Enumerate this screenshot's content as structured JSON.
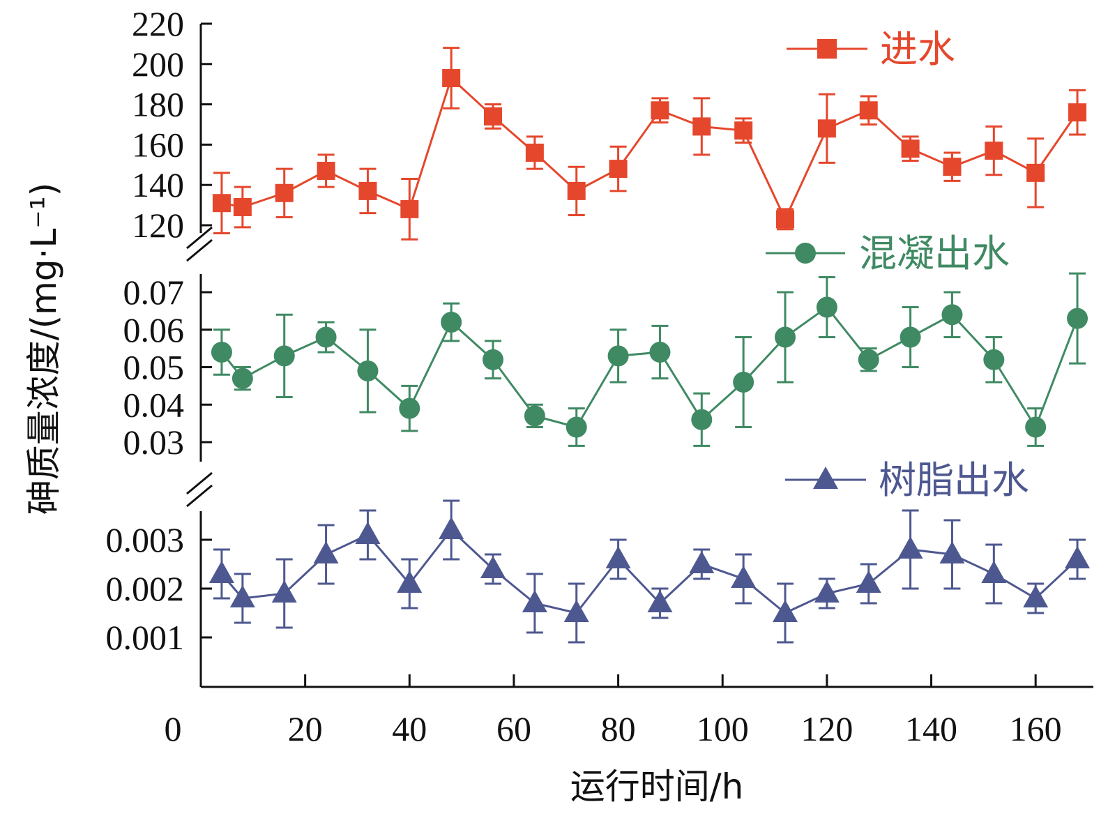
{
  "chart_data": {
    "type": "line",
    "xlabel": "运行时间/h",
    "ylabel": "砷质量浓度/(mg·L⁻¹)",
    "x_ticks": [
      "0",
      "20",
      "40",
      "60",
      "80",
      "100",
      "120",
      "140",
      "160"
    ],
    "xlim": [
      0,
      170
    ],
    "x": [
      4,
      8,
      16,
      24,
      32,
      40,
      48,
      56,
      64,
      72,
      80,
      88,
      96,
      104,
      112,
      120,
      128,
      136,
      144,
      152,
      160,
      168
    ],
    "panels": [
      {
        "y_ticks": [
          "120",
          "140",
          "160",
          "180",
          "200",
          "220"
        ],
        "ylim": [
          115,
          220
        ],
        "series": [
          {
            "name": "进水",
            "color": "#e5472c",
            "marker": "square",
            "values": [
              131,
              129,
              136,
              147,
              137,
              128,
              193,
              174,
              156,
              137,
              148,
              177,
              169,
              167,
              123,
              168,
              177,
              158,
              149,
              157,
              146,
              176
            ],
            "errors": [
              15,
              10,
              12,
              8,
              11,
              15,
              15,
              6,
              8,
              12,
              11,
              6,
              14,
              6,
              5,
              17,
              7,
              6,
              7,
              12,
              17,
              11
            ]
          }
        ]
      },
      {
        "y_ticks": [
          "0.03",
          "0.04",
          "0.05",
          "0.06",
          "0.07"
        ],
        "ylim": [
          0.026,
          0.076
        ],
        "series": [
          {
            "name": "混凝出水",
            "color": "#3f8a63",
            "marker": "circle",
            "values": [
              0.054,
              0.047,
              0.053,
              0.058,
              0.049,
              0.039,
              0.062,
              0.052,
              0.037,
              0.034,
              0.053,
              0.054,
              0.036,
              0.046,
              0.058,
              0.066,
              0.052,
              0.058,
              0.064,
              0.052,
              0.034,
              0.063
            ],
            "errors": [
              0.006,
              0.003,
              0.011,
              0.004,
              0.011,
              0.006,
              0.005,
              0.005,
              0.003,
              0.005,
              0.007,
              0.007,
              0.007,
              0.012,
              0.012,
              0.008,
              0.003,
              0.008,
              0.006,
              0.006,
              0.005,
              0.012
            ]
          }
        ]
      },
      {
        "y_ticks": [
          "0.001",
          "0.002",
          "0.003"
        ],
        "ylim": [
          0,
          0.0037
        ],
        "series": [
          {
            "name": "树脂出水",
            "color": "#4e5890",
            "marker": "triangle",
            "values": [
              0.0023,
              0.0018,
              0.0019,
              0.0027,
              0.0031,
              0.0021,
              0.0032,
              0.0024,
              0.0017,
              0.0015,
              0.0026,
              0.0017,
              0.0025,
              0.0022,
              0.0015,
              0.0019,
              0.0021,
              0.0028,
              0.0027,
              0.0023,
              0.0018,
              0.0026
            ],
            "errors": [
              0.0005,
              0.0005,
              0.0007,
              0.0006,
              0.0005,
              0.0005,
              0.0006,
              0.0003,
              0.0006,
              0.0006,
              0.0004,
              0.0003,
              0.0003,
              0.0005,
              0.0006,
              0.0003,
              0.0004,
              0.0008,
              0.0007,
              0.0006,
              0.0003,
              0.0004
            ]
          }
        ]
      }
    ]
  }
}
